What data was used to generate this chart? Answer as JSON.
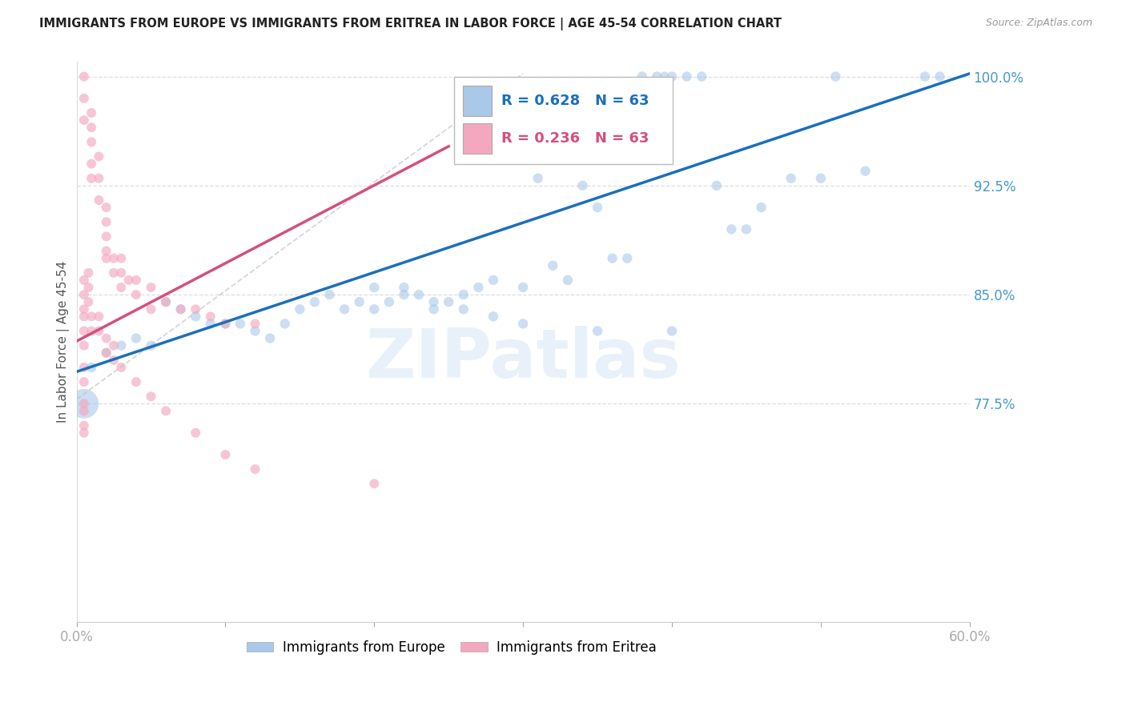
{
  "title": "IMMIGRANTS FROM EUROPE VS IMMIGRANTS FROM ERITREA IN LABOR FORCE | AGE 45-54 CORRELATION CHART",
  "source": "Source: ZipAtlas.com",
  "ylabel": "In Labor Force | Age 45-54",
  "xlim": [
    0.0,
    0.6
  ],
  "ylim": [
    0.625,
    1.01
  ],
  "yticks": [
    0.775,
    0.85,
    0.925,
    1.0
  ],
  "ytick_labels": [
    "77.5%",
    "85.0%",
    "92.5%",
    "100.0%"
  ],
  "xtick_vals": [
    0.0,
    0.1,
    0.2,
    0.3,
    0.4,
    0.5,
    0.6
  ],
  "xtick_labels": [
    "0.0%",
    "",
    "",
    "",
    "",
    "",
    "60.0%"
  ],
  "blue_R": 0.628,
  "blue_N": 63,
  "pink_R": 0.236,
  "pink_N": 63,
  "blue_color": "#aac8e8",
  "pink_color": "#f4a8c0",
  "blue_line_color": "#1a6fbd",
  "pink_line_color": "#d4507a",
  "ref_line_color": "#cccccc",
  "legend_label_blue": "Immigrants from Europe",
  "legend_label_pink": "Immigrants from Eritrea",
  "watermark": "ZIPatlas",
  "grid_color": "#dddddd",
  "ytick_color": "#4499cc",
  "xtick_color": "#aaaaaa",
  "title_color": "#222222",
  "source_color": "#999999",
  "blue_line_x": [
    0.0,
    0.6
  ],
  "blue_line_y": [
    0.797,
    1.002
  ],
  "pink_line_x": [
    0.0,
    0.25
  ],
  "pink_line_y": [
    0.818,
    0.952
  ],
  "ref_line_x": [
    0.0,
    0.3
  ],
  "ref_line_y": [
    0.778,
    1.002
  ],
  "blue_dots_x": [
    0.38,
    0.39,
    0.395,
    0.4,
    0.41,
    0.42,
    0.005,
    0.51,
    0.57,
    0.29,
    0.31,
    0.28,
    0.34,
    0.35,
    0.43,
    0.44,
    0.46,
    0.06,
    0.07,
    0.08,
    0.09,
    0.1,
    0.11,
    0.12,
    0.13,
    0.14,
    0.15,
    0.16,
    0.17,
    0.18,
    0.19,
    0.2,
    0.21,
    0.22,
    0.23,
    0.24,
    0.25,
    0.26,
    0.27,
    0.28,
    0.3,
    0.32,
    0.33,
    0.36,
    0.37,
    0.45,
    0.48,
    0.5,
    0.53,
    0.58,
    0.04,
    0.05,
    0.03,
    0.02,
    0.01,
    0.2,
    0.22,
    0.24,
    0.26,
    0.28,
    0.3,
    0.35,
    0.4
  ],
  "blue_dots_y": [
    1.0,
    1.0,
    1.0,
    1.0,
    1.0,
    1.0,
    0.775,
    1.0,
    1.0,
    0.96,
    0.93,
    0.965,
    0.925,
    0.91,
    0.925,
    0.895,
    0.91,
    0.845,
    0.84,
    0.835,
    0.83,
    0.83,
    0.83,
    0.825,
    0.82,
    0.83,
    0.84,
    0.845,
    0.85,
    0.84,
    0.845,
    0.84,
    0.845,
    0.855,
    0.85,
    0.84,
    0.845,
    0.85,
    0.855,
    0.86,
    0.855,
    0.87,
    0.86,
    0.875,
    0.875,
    0.895,
    0.93,
    0.93,
    0.935,
    1.0,
    0.82,
    0.815,
    0.815,
    0.81,
    0.8,
    0.855,
    0.85,
    0.845,
    0.84,
    0.835,
    0.83,
    0.825,
    0.825
  ],
  "blue_dots_size": [
    80,
    80,
    80,
    80,
    80,
    80,
    700,
    80,
    80,
    80,
    80,
    80,
    80,
    80,
    80,
    80,
    80,
    80,
    80,
    80,
    80,
    80,
    80,
    80,
    80,
    80,
    80,
    80,
    80,
    80,
    80,
    80,
    80,
    80,
    80,
    80,
    80,
    80,
    80,
    80,
    80,
    80,
    80,
    80,
    80,
    80,
    80,
    80,
    80,
    80,
    80,
    80,
    80,
    80,
    80,
    80,
    80,
    80,
    80,
    80,
    80,
    80,
    80
  ],
  "pink_dots_x": [
    0.005,
    0.005,
    0.005,
    0.01,
    0.01,
    0.01,
    0.01,
    0.01,
    0.015,
    0.015,
    0.015,
    0.02,
    0.02,
    0.02,
    0.02,
    0.02,
    0.025,
    0.025,
    0.03,
    0.03,
    0.03,
    0.035,
    0.04,
    0.04,
    0.05,
    0.05,
    0.06,
    0.07,
    0.08,
    0.09,
    0.1,
    0.12,
    0.005,
    0.005,
    0.005,
    0.005,
    0.005,
    0.005,
    0.005,
    0.005,
    0.005,
    0.005,
    0.005,
    0.005,
    0.008,
    0.008,
    0.008,
    0.01,
    0.01,
    0.015,
    0.015,
    0.02,
    0.02,
    0.025,
    0.025,
    0.03,
    0.04,
    0.05,
    0.06,
    0.08,
    0.1,
    0.12,
    0.2
  ],
  "pink_dots_y": [
    1.0,
    0.985,
    0.97,
    0.975,
    0.965,
    0.955,
    0.94,
    0.93,
    0.945,
    0.93,
    0.915,
    0.91,
    0.9,
    0.89,
    0.88,
    0.875,
    0.875,
    0.865,
    0.875,
    0.865,
    0.855,
    0.86,
    0.86,
    0.85,
    0.855,
    0.84,
    0.845,
    0.84,
    0.84,
    0.835,
    0.83,
    0.83,
    0.86,
    0.85,
    0.84,
    0.835,
    0.825,
    0.815,
    0.8,
    0.79,
    0.775,
    0.77,
    0.76,
    0.755,
    0.865,
    0.855,
    0.845,
    0.835,
    0.825,
    0.835,
    0.825,
    0.82,
    0.81,
    0.815,
    0.805,
    0.8,
    0.79,
    0.78,
    0.77,
    0.755,
    0.74,
    0.73,
    0.72
  ]
}
